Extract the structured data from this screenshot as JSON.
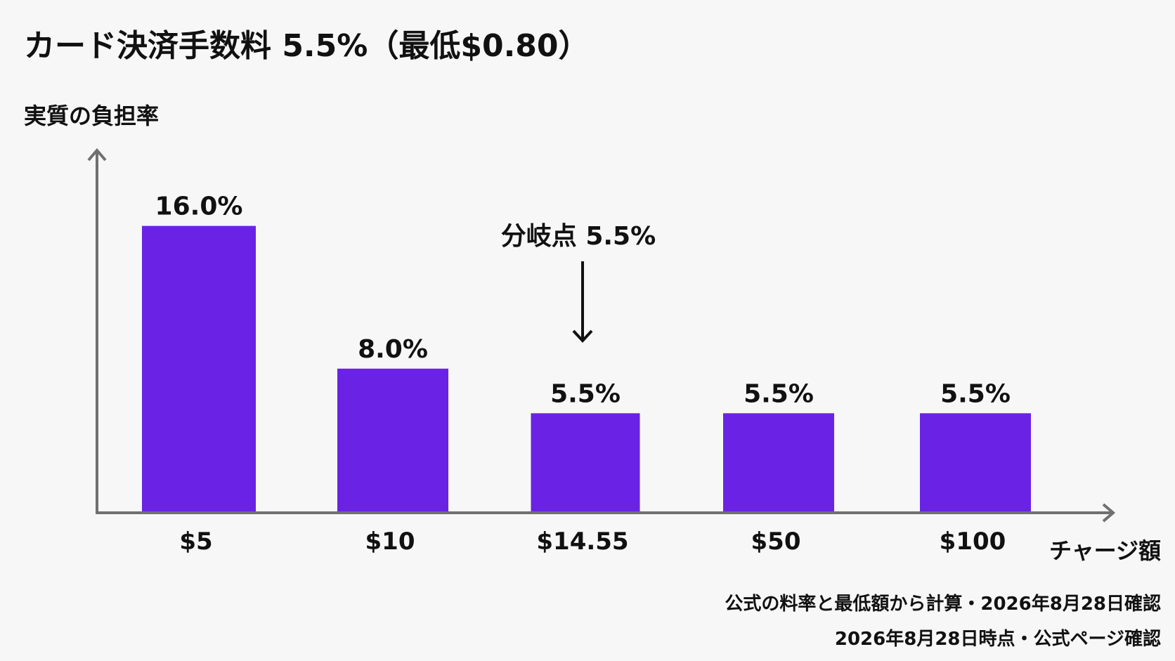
{
  "chart_data": {
    "type": "bar",
    "title": "カード決済手数料 5.5%（最低$0.80）",
    "ylabel": "実質の負担率",
    "xlabel": "チャージ額",
    "categories": [
      "$5",
      "$10",
      "$14.55",
      "$50",
      "$100"
    ],
    "values": [
      16.0,
      8.0,
      5.5,
      5.5,
      5.5
    ],
    "value_labels": [
      "16.0%",
      "8.0%",
      "5.5%",
      "5.5%",
      "5.5%"
    ],
    "ylim": [
      0,
      20
    ],
    "grid": false,
    "bar_color": "#6a23e4",
    "annotation": {
      "text": "分岐点 5.5%",
      "category": "$14.55"
    },
    "notes": [
      "公式の料率と最低額から計算・2026年8月28日確認",
      "2026年8月28日時点・公式ページ確認"
    ]
  }
}
